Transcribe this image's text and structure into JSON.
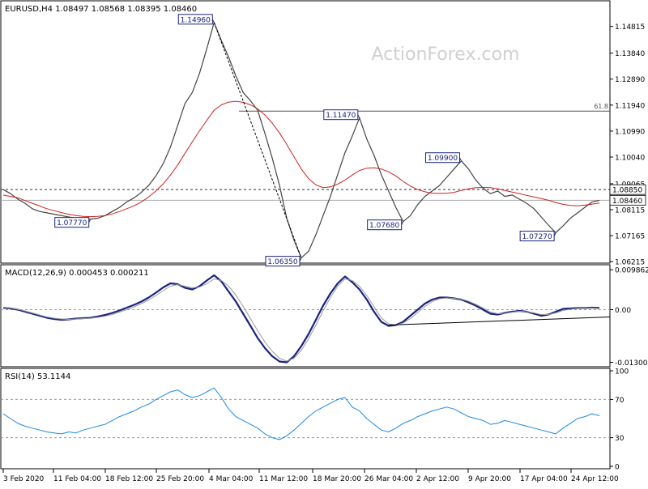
{
  "chart_data": [
    {
      "panel": "price",
      "type": "line",
      "title": "EURUSD,H4  1.08497 1.08568 1.08395 1.08460",
      "watermark": "ActionForex.com",
      "ylim": [
        1.0625,
        1.1525
      ],
      "y_ticks": [
        "1.14815",
        "1.13840",
        "1.12890",
        "1.11940",
        "1.10990",
        "1.10040",
        "1.09065",
        "1.08115",
        "1.07165",
        "1.06215"
      ],
      "y_tick_values": [
        1.14815,
        1.1384,
        1.1289,
        1.1194,
        1.1099,
        1.1004,
        1.09065,
        1.08115,
        1.07165,
        1.06215
      ],
      "horizontal_lines": [
        {
          "value": 1.1172,
          "label": "61.8",
          "style": "solid"
        },
        {
          "value": 1.0885,
          "label": "1.08850",
          "style": "dashed"
        },
        {
          "value": 1.0846,
          "label": "1.08460",
          "style": "solid"
        }
      ],
      "series": [
        {
          "values": [
            1.0885,
            1.087,
            1.085,
            1.0835,
            1.0815,
            1.0805,
            1.08,
            1.0795,
            1.079,
            1.0785,
            1.078,
            1.0778,
            1.0777,
            1.078,
            1.079,
            1.0805,
            1.082,
            1.084,
            1.0855,
            1.0875,
            1.09,
            1.0935,
            1.098,
            1.104,
            1.112,
            1.12,
            1.124,
            1.131,
            1.14,
            1.1496,
            1.143,
            1.137,
            1.13,
            1.124,
            1.121,
            1.1175,
            1.109,
            1.1,
            1.09,
            1.078,
            1.07,
            1.0635,
            1.066,
            1.072,
            1.079,
            1.086,
            1.094,
            1.102,
            1.108,
            1.1147,
            1.107,
            1.101,
            1.094,
            1.088,
            1.082,
            1.0768,
            1.079,
            1.083,
            1.086,
            1.088,
            1.09,
            1.093,
            1.096,
            1.099,
            1.096,
            1.092,
            1.089,
            1.087,
            1.088,
            1.086,
            1.0865,
            1.085,
            1.0835,
            1.0815,
            1.0785,
            1.0755,
            1.0727,
            1.0752,
            1.078,
            1.08,
            1.082,
            1.084,
            1.0846
          ],
          "color": "#444444"
        },
        {
          "values": [
            1.0865,
            1.086,
            1.0855,
            1.0845,
            1.0835,
            1.0825,
            1.0815,
            1.0808,
            1.0801,
            1.0795,
            1.079,
            1.0787,
            1.0786,
            1.0787,
            1.079,
            1.0796,
            1.0805,
            1.0815,
            1.0826,
            1.084,
            1.0858,
            1.088,
            1.0906,
            1.0938,
            1.0975,
            1.1018,
            1.106,
            1.11,
            1.1138,
            1.1175,
            1.1195,
            1.1205,
            1.1208,
            1.1204,
            1.1195,
            1.118,
            1.1158,
            1.1128,
            1.1092,
            1.105,
            1.1005,
            1.096,
            1.0925,
            1.0902,
            1.0892,
            1.0895,
            1.0905,
            1.092,
            1.0938,
            1.0955,
            1.0963,
            1.0965,
            1.096,
            1.095,
            1.0935,
            1.0915,
            1.0898,
            1.0885,
            1.0877,
            1.0872,
            1.0871,
            1.0872,
            1.0875,
            1.0882,
            1.0888,
            1.0892,
            1.0893,
            1.0892,
            1.0888,
            1.0882,
            1.0876,
            1.087,
            1.0864,
            1.0858,
            1.0852,
            1.0846,
            1.0838,
            1.0831,
            1.0827,
            1.0826,
            1.0828,
            1.0832,
            1.0836
          ],
          "color": "#cc2222"
        }
      ],
      "annotations": [
        {
          "label": "1.14960",
          "x_index": 29,
          "value": 1.1496
        },
        {
          "label": "1.07770",
          "x_index": 12,
          "value": 1.0777
        },
        {
          "label": "1.06350",
          "x_index": 41,
          "value": 1.0635
        },
        {
          "label": "1.11470",
          "x_index": 49,
          "value": 1.1147
        },
        {
          "label": "1.07680",
          "x_index": 55,
          "value": 1.0768
        },
        {
          "label": "1.09900",
          "x_index": 63,
          "value": 1.099
        },
        {
          "label": "1.07270",
          "x_index": 76,
          "value": 1.0727
        }
      ]
    },
    {
      "panel": "macd",
      "type": "line",
      "title": "MACD(12,26,9) 0.000453 0.000211",
      "ylim": [
        -0.0135,
        0.0105
      ],
      "y_ticks": [
        "0.009862",
        "0.00",
        "-0.013002"
      ],
      "y_tick_values": [
        0.009862,
        0.0,
        -0.013002
      ],
      "series": [
        {
          "values": [
            0.0005,
            0.0003,
            0.0,
            -0.0005,
            -0.001,
            -0.0015,
            -0.002,
            -0.0023,
            -0.0025,
            -0.0024,
            -0.0022,
            -0.0021,
            -0.002,
            -0.0017,
            -0.0013,
            -0.0008,
            -0.0002,
            0.0005,
            0.0012,
            0.002,
            0.003,
            0.0042,
            0.0055,
            0.0065,
            0.0063,
            0.0054,
            0.005,
            0.0058,
            0.0072,
            0.0085,
            0.007,
            0.0045,
            0.002,
            -0.001,
            -0.004,
            -0.007,
            -0.0095,
            -0.0115,
            -0.0128,
            -0.013,
            -0.0115,
            -0.009,
            -0.006,
            -0.0025,
            0.001,
            0.004,
            0.0065,
            0.0082,
            0.0068,
            0.005,
            0.0025,
            -0.0005,
            -0.003,
            -0.004,
            -0.0038,
            -0.003,
            -0.0015,
            0.0,
            0.0015,
            0.0025,
            0.003,
            0.003,
            0.0028,
            0.0025,
            0.0018,
            0.001,
            0.0,
            -0.001,
            -0.0012,
            -0.0008,
            -0.0005,
            -0.0003,
            -0.0005,
            -0.001,
            -0.0015,
            -0.0012,
            -0.0005,
            0.0002,
            0.0003,
            0.0004,
            0.0004,
            0.0005,
            0.00045
          ],
          "color": "#1a237e"
        },
        {
          "values": [
            0.0006,
            0.0004,
            0.0001,
            -0.0003,
            -0.0008,
            -0.0013,
            -0.0018,
            -0.0021,
            -0.0023,
            -0.0024,
            -0.0023,
            -0.0022,
            -0.0021,
            -0.0019,
            -0.0016,
            -0.0012,
            -0.0006,
            0.0,
            0.0007,
            0.0015,
            0.0024,
            0.0035,
            0.0047,
            0.0058,
            0.0062,
            0.0058,
            0.0054,
            0.0056,
            0.0064,
            0.0076,
            0.0072,
            0.0058,
            0.0036,
            0.0008,
            -0.0022,
            -0.0052,
            -0.008,
            -0.0103,
            -0.012,
            -0.0127,
            -0.012,
            -0.01,
            -0.0072,
            -0.0038,
            -0.0003,
            0.003,
            0.0058,
            0.0076,
            0.0072,
            0.0058,
            0.0035,
            0.0007,
            -0.002,
            -0.0035,
            -0.0038,
            -0.0033,
            -0.0022,
            -0.0007,
            0.0008,
            0.002,
            0.0027,
            0.0029,
            0.0028,
            0.0026,
            0.0021,
            0.0013,
            0.0004,
            -0.0006,
            -0.001,
            -0.0009,
            -0.0006,
            -0.0004,
            -0.0005,
            -0.0008,
            -0.0012,
            -0.0012,
            -0.0008,
            -0.0002,
            0.0001,
            0.0003,
            0.0003,
            0.0004,
            0.00021
          ],
          "color": "#999999"
        }
      ]
    },
    {
      "panel": "rsi",
      "type": "line",
      "title": "RSI(14) 53.1144",
      "ylim": [
        0,
        100
      ],
      "y_ticks": [
        "100",
        "70",
        "30",
        "0"
      ],
      "y_tick_values": [
        100,
        70,
        30,
        0
      ],
      "levels": [
        70,
        30
      ],
      "series": [
        {
          "values": [
            55,
            50,
            45,
            42,
            40,
            38,
            36,
            35,
            34,
            36,
            35,
            38,
            40,
            42,
            44,
            48,
            52,
            55,
            58,
            62,
            65,
            70,
            74,
            78,
            80,
            75,
            72,
            74,
            78,
            82,
            72,
            60,
            52,
            48,
            44,
            40,
            34,
            30,
            28,
            32,
            38,
            45,
            52,
            58,
            62,
            66,
            70,
            72,
            62,
            58,
            50,
            44,
            38,
            36,
            40,
            45,
            48,
            52,
            55,
            58,
            60,
            62,
            60,
            56,
            52,
            50,
            48,
            44,
            45,
            48,
            46,
            44,
            42,
            40,
            38,
            36,
            34,
            40,
            45,
            50,
            52,
            55,
            53
          ],
          "color": "#1e88e5"
        }
      ]
    }
  ],
  "x_axis": {
    "labels": [
      "3 Feb 2020",
      "11 Feb 04:00",
      "18 Feb 12:00",
      "25 Feb 20:00",
      "4 Mar 04:00",
      "11 Mar 12:00",
      "18 Mar 20:00",
      "26 Mar 04:00",
      "2 Apr 12:00",
      "9 Apr 20:00",
      "17 Apr 04:00",
      "24 Apr 12:00"
    ]
  },
  "colors": {
    "price_line": "#444444",
    "ma_line": "#cc2222",
    "macd_main": "#1a237e",
    "macd_signal": "#999999",
    "rsi_line": "#1e88e5",
    "trendline": "#000000",
    "grid_dash": "#888888",
    "label_box_border": "#1a237e",
    "label_text": "#1a237e",
    "watermark": "#d0d0d0"
  }
}
